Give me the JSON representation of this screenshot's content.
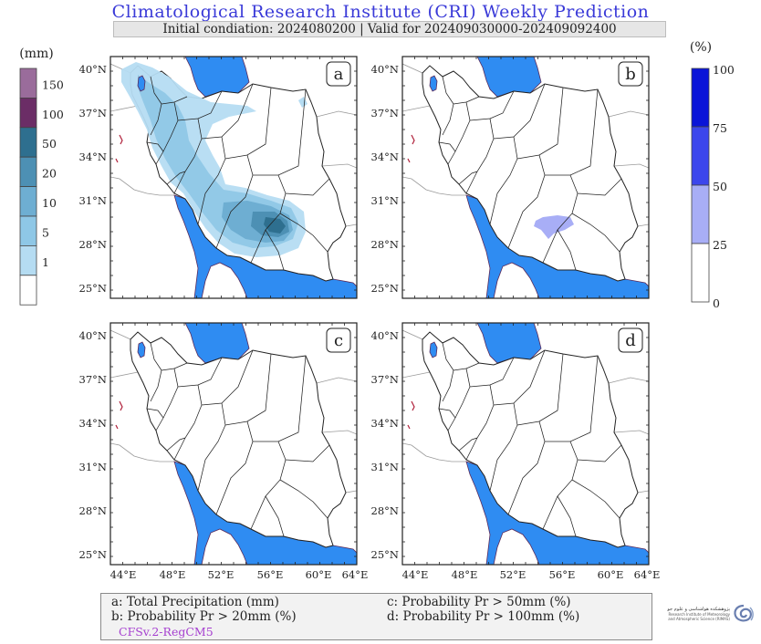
{
  "header": {
    "title": "Climatological Research Institute (CRI) Weekly Prediction",
    "subtitle": "Initial condiation: 2024080200 | Valid for 202409030000-202409092400"
  },
  "left_colorbar": {
    "unit": "(mm)",
    "ticks": [
      "150",
      "100",
      "50",
      "20",
      "10",
      "5",
      "1"
    ],
    "colors": [
      "#9a6c9b",
      "#6b2d66",
      "#2e6f8f",
      "#4d90b4",
      "#6eaed2",
      "#8ec7e6",
      "#b5dcf2",
      "#ffffff"
    ]
  },
  "right_colorbar": {
    "unit": "(%)",
    "ticks": [
      "100",
      "75",
      "50",
      "25",
      "0"
    ],
    "colors": [
      "#0a14d8",
      "#3c46ec",
      "#a8aef6",
      "#ffffff"
    ]
  },
  "axes": {
    "lat_labels": [
      "40°N",
      "37°N",
      "34°N",
      "31°N",
      "28°N",
      "25°N"
    ],
    "lon_labels": [
      "44°E",
      "48°E",
      "52°E",
      "56°E",
      "60°E",
      "64°E"
    ]
  },
  "panels": [
    {
      "id": "a",
      "label": "a"
    },
    {
      "id": "b",
      "label": "b"
    },
    {
      "id": "c",
      "label": "c"
    },
    {
      "id": "d",
      "label": "d"
    }
  ],
  "legend": {
    "a": "a: Total Precipitation (mm)",
    "b": "b: Probability Pr > 20mm (%)",
    "c": "c: Probability Pr > 50mm (%)",
    "d": "d: Probability Pr > 100mm (%)",
    "model": "CFSv.2-RegCM5"
  },
  "logo": {
    "line1": "پژوهشکده هواشناسی و علوم جو",
    "line2": "Research Institute of Meteorology",
    "line3": "and Atmospheric Science (RIMAS)"
  },
  "colors": {
    "water": "#2f8cf2",
    "title": "#3a3ad8",
    "model_text": "#a640d0"
  }
}
